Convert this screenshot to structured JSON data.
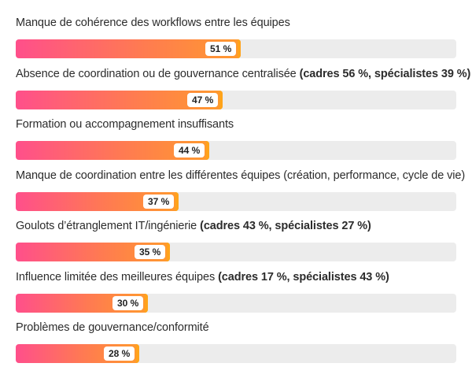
{
  "chart_data": {
    "type": "bar",
    "orientation": "horizontal",
    "xlim": [
      0,
      100
    ],
    "grid": false,
    "colors": {
      "gradient_start": "#ff4f8b",
      "gradient_end": "#ff9a2e",
      "track": "#ececec"
    },
    "categories": [
      {
        "label": "Manque de cohérence des workflows entre les équipes",
        "note": "",
        "value": 51,
        "value_label": "51 %"
      },
      {
        "label": "Absence de coordination ou de gouvernance centralisée",
        "note": "(cadres 56 %, spécialistes 39 %)",
        "value": 47,
        "value_label": "47 %"
      },
      {
        "label": "Formation ou accompagnement insuffisants",
        "note": "",
        "value": 44,
        "value_label": "44 %"
      },
      {
        "label": "Manque de coordination entre les différentes équipes (création, performance, cycle de vie)",
        "note": "",
        "value": 37,
        "value_label": "37 %"
      },
      {
        "label": "Goulots d’étranglement IT/ingénierie",
        "note": "(cadres 43 %, spécialistes 27 %)",
        "value": 35,
        "value_label": "35 %"
      },
      {
        "label": "Influence limitée des meilleures équipes",
        "note": "(cadres 17 %, spécialistes 43 %)",
        "value": 30,
        "value_label": "30 %"
      },
      {
        "label": "Problèmes de gouvernance/conformité",
        "note": "",
        "value": 28,
        "value_label": "28 %"
      }
    ]
  }
}
